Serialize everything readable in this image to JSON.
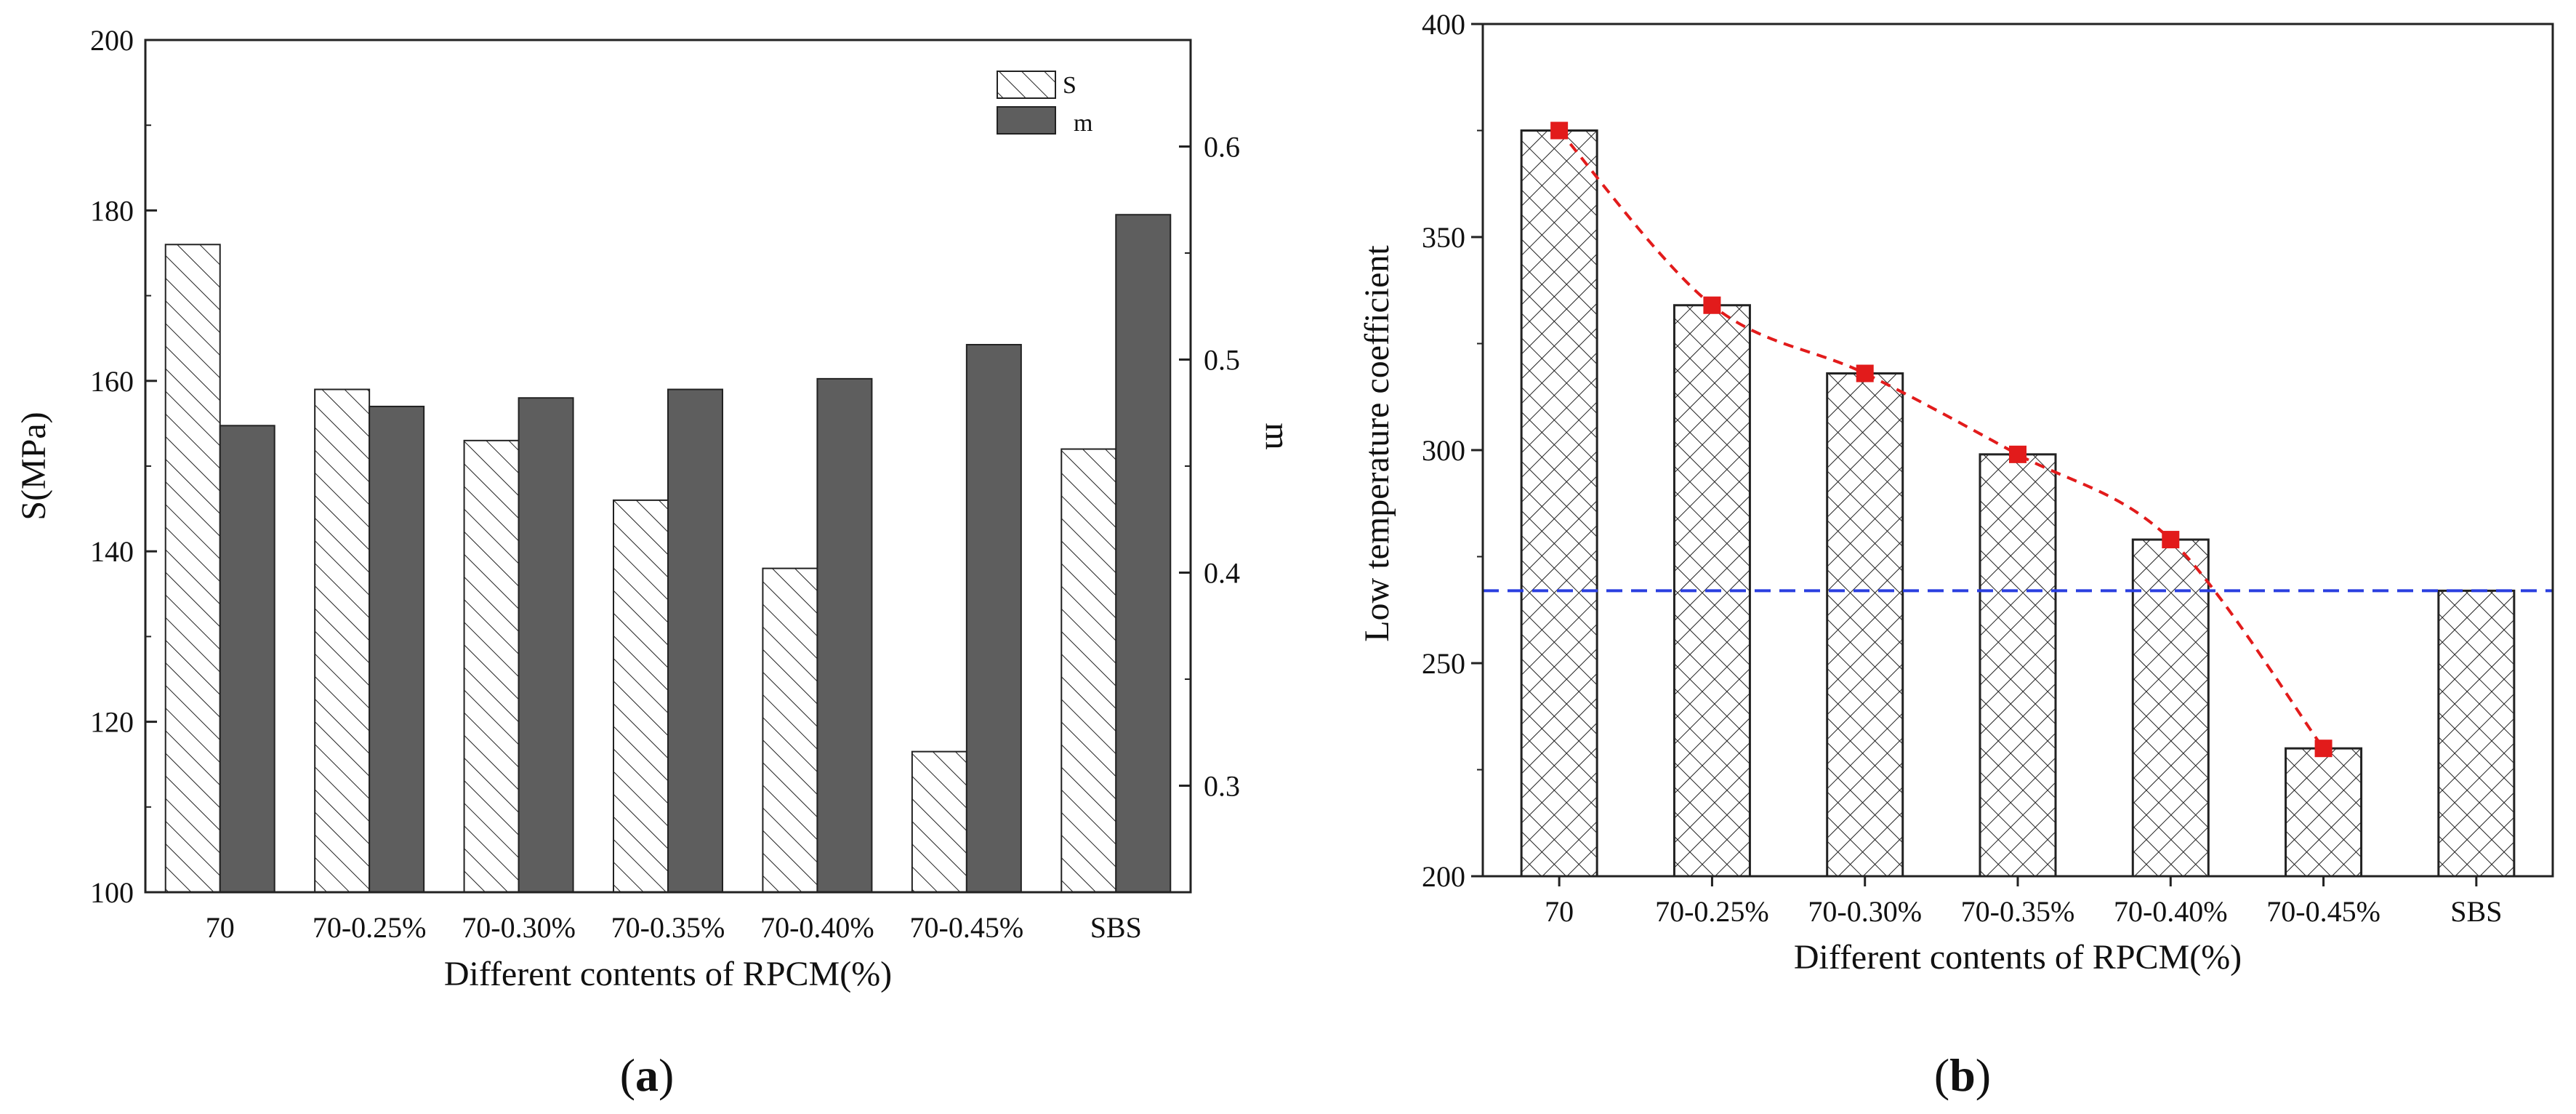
{
  "chart_data": [
    {
      "panel": "(a)",
      "caption_open": "(",
      "caption_letter": "a",
      "caption_close": ")",
      "type": "bar",
      "categories": [
        "70",
        "70-0.25%",
        "70-0.30%",
        "70-0.35%",
        "70-0.40%",
        "70-0.45%",
        "SBS"
      ],
      "xlabel": "Different contents of RPCM(%)",
      "ylabel": "S(MPa)",
      "y2label": "m",
      "ylim": [
        100,
        200
      ],
      "y2lim": [
        0.25,
        0.65
      ],
      "yticks": [
        100,
        120,
        140,
        160,
        180,
        200
      ],
      "y2ticks": [
        "0.3",
        "0.4",
        "0.5",
        "0.6"
      ],
      "legend": [
        "S",
        "m"
      ],
      "legend_position": "top-right",
      "series": [
        {
          "name": "S",
          "axis": "left",
          "pattern": "hatch",
          "values": [
            176,
            159,
            153,
            146,
            138,
            116.5,
            152
          ]
        },
        {
          "name": "m",
          "axis": "right",
          "pattern": "solid-gray",
          "values": [
            0.469,
            0.478,
            0.482,
            0.486,
            0.491,
            0.507,
            0.568
          ]
        }
      ]
    },
    {
      "panel": "(b)",
      "caption_open": "(",
      "caption_letter": "b",
      "caption_close": ")",
      "type": "bar",
      "categories": [
        "70",
        "70-0.25%",
        "70-0.30%",
        "70-0.35%",
        "70-0.40%",
        "70-0.45%",
        "SBS"
      ],
      "xlabel": "Different contents of RPCM(%)",
      "ylabel": "Low temperature coefficient",
      "ylim": [
        200,
        400
      ],
      "yticks": [
        200,
        250,
        300,
        350,
        400
      ],
      "values": [
        375,
        334,
        318,
        299,
        279,
        230,
        267
      ],
      "trend_line": {
        "color": "#e21b1b",
        "style": "dashed",
        "points": [
          375,
          334,
          318,
          299,
          279,
          230
        ]
      },
      "reference_line": {
        "value": 267,
        "color": "#2a3fe0",
        "style": "dashed"
      }
    }
  ]
}
